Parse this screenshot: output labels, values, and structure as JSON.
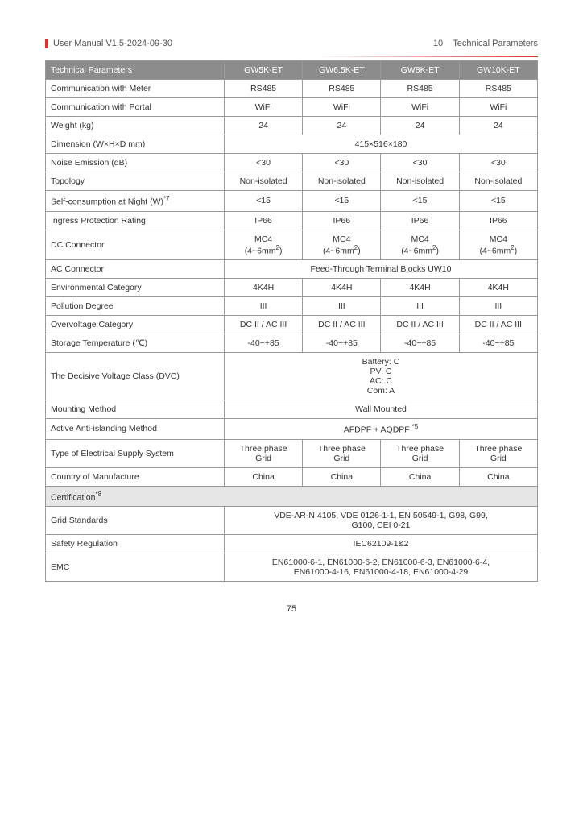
{
  "header": {
    "left": "User Manual V1.5-2024-09-30",
    "right_num": "10",
    "right_title": "Technical Parameters"
  },
  "table": {
    "header_label": "Technical Parameters",
    "models": [
      "GW5K-ET",
      "GW6.5K-ET",
      "GW8K-ET",
      "GW10K-ET"
    ],
    "rows": [
      {
        "label": "Communication with Meter",
        "vals": [
          "RS485",
          "RS485",
          "RS485",
          "RS485"
        ]
      },
      {
        "label": "Communication with Portal",
        "vals": [
          "WiFi",
          "WiFi",
          "WiFi",
          "WiFi"
        ]
      },
      {
        "label": "Weight (kg)",
        "vals": [
          "24",
          "24",
          "24",
          "24"
        ]
      },
      {
        "label": "Dimension  (W×H×D mm)",
        "span": "415×516×180"
      },
      {
        "label": "Noise Emission (dB)",
        "vals": [
          "<30",
          "<30",
          "<30",
          "<30"
        ]
      },
      {
        "label": "Topology",
        "vals": [
          "Non-isolated",
          "Non-isolated",
          "Non-isolated",
          "Non-isolated"
        ]
      },
      {
        "label": "Self-consumption at Night (W)",
        "sup": "*7",
        "vals": [
          "<15",
          "<15",
          "<15",
          "<15"
        ]
      },
      {
        "label": "Ingress Protection Rating",
        "vals": [
          "IP66",
          "IP66",
          "IP66",
          "IP66"
        ]
      },
      {
        "label": "DC Connector",
        "vals_html": [
          "MC4<br>(4~6mm<sup>2</sup>)",
          "MC4<br>(4~6mm<sup>2</sup>)",
          "MC4<br>(4~6mm<sup>2</sup>)",
          "MC4<br>(4~6mm<sup>2</sup>)"
        ]
      },
      {
        "label": "AC Connector",
        "span": "Feed-Through Terminal Blocks UW10"
      },
      {
        "label": "Environmental Category",
        "vals": [
          "4K4H",
          "4K4H",
          "4K4H",
          "4K4H"
        ]
      },
      {
        "label": "Pollution Degree",
        "vals": [
          "III",
          "III",
          "III",
          "III"
        ]
      },
      {
        "label": "Overvoltage Category",
        "vals": [
          "DC II / AC III",
          "DC II / AC III",
          "DC II / AC III",
          "DC II / AC III"
        ]
      },
      {
        "label": "Storage Temperature (℃)",
        "vals": [
          "-40~+85",
          "-40~+85",
          "-40~+85",
          "-40~+85"
        ]
      },
      {
        "label": "The Decisive Voltage Class (DVC)",
        "span_html": "Battery: C<br>PV: C<br>AC: C<br>Com: A"
      },
      {
        "label": "Mounting Method",
        "span": "Wall Mounted"
      },
      {
        "label": "Active Anti-islanding Method",
        "span_html": "AFDPF + AQDPF <sup>*5</sup>"
      },
      {
        "label": "Type of Electrical Supply System",
        "vals_html": [
          "Three phase<br>Grid",
          "Three phase<br>Grid",
          "Three phase<br>Grid",
          "Three phase<br>Grid"
        ]
      },
      {
        "label": "Country of Manufacture",
        "vals": [
          "China",
          "China",
          "China",
          "China"
        ]
      },
      {
        "section": "Certification",
        "sup": "*8"
      },
      {
        "label": "Grid Standards",
        "span_html": "VDE-AR-N  4105, VDE 0126-1-1, EN 50549-1, G98, G99,<br>G100, CEI 0-21"
      },
      {
        "label": "Safety Regulation",
        "span": "IEC62109-1&2"
      },
      {
        "label": "EMC",
        "span_html": "EN61000-6-1, EN61000-6-2, EN61000-6-3, EN61000-6-4,<br>EN61000-4-16, EN61000-4-18, EN61000-4-29"
      }
    ]
  },
  "page_number": "75"
}
